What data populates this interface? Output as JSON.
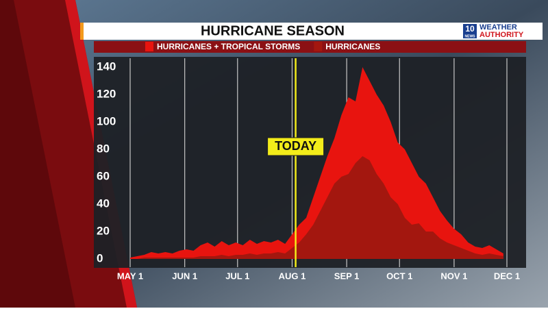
{
  "chart_data": {
    "type": "area",
    "title": "HURRICANE SEASON",
    "logo": {
      "number": "10",
      "network": "NEWS",
      "line1": "WEATHER",
      "line2": "AUTHORITY"
    },
    "x": [
      0,
      4,
      8,
      12,
      16,
      20,
      24,
      28,
      32,
      36,
      40,
      44,
      48,
      52,
      56,
      60,
      64,
      68,
      72,
      76,
      80,
      84,
      88,
      92,
      96,
      100,
      104,
      108,
      112,
      116,
      120,
      124,
      128,
      132,
      136,
      140,
      144,
      148,
      152,
      156,
      160,
      164,
      168,
      172,
      176,
      180,
      184,
      188,
      192,
      196,
      200,
      204,
      208,
      212
    ],
    "series": [
      {
        "name": "HURRICANES + TROPICAL STORMS",
        "color": "#e8140f",
        "values": [
          1,
          2,
          3,
          5,
          4,
          5,
          4,
          6,
          7,
          6,
          10,
          12,
          9,
          13,
          10,
          12,
          10,
          14,
          11,
          13,
          12,
          14,
          11,
          18,
          25,
          30,
          45,
          60,
          75,
          88,
          105,
          118,
          115,
          140,
          130,
          120,
          112,
          100,
          85,
          80,
          70,
          60,
          55,
          45,
          35,
          28,
          22,
          18,
          12,
          9,
          8,
          10,
          7,
          4
        ]
      },
      {
        "name": "HURRICANES",
        "color": "#a3170f",
        "values": [
          0,
          0,
          1,
          1,
          1,
          1,
          1,
          1,
          1,
          1,
          2,
          2,
          2,
          3,
          2,
          3,
          3,
          4,
          3,
          4,
          4,
          5,
          4,
          8,
          12,
          18,
          25,
          35,
          45,
          55,
          60,
          62,
          70,
          75,
          72,
          62,
          55,
          45,
          40,
          30,
          25,
          26,
          20,
          20,
          15,
          12,
          10,
          8,
          6,
          4,
          3,
          4,
          3,
          2
        ]
      }
    ],
    "xlim": [
      0,
      214
    ],
    "xticks": [
      {
        "value": 0,
        "label": "MAY 1"
      },
      {
        "value": 31,
        "label": "JUN 1"
      },
      {
        "value": 61,
        "label": "JUL 1"
      },
      {
        "value": 92,
        "label": "AUG 1"
      },
      {
        "value": 123,
        "label": "SEP 1"
      },
      {
        "value": 153,
        "label": "OCT 1"
      },
      {
        "value": 184,
        "label": "NOV 1"
      },
      {
        "value": 214,
        "label": "DEC 1"
      }
    ],
    "ylim": [
      0,
      140
    ],
    "yticks": [
      0,
      20,
      40,
      60,
      80,
      100,
      120,
      140
    ],
    "grid": "x",
    "annotation": {
      "text": "TODAY",
      "x": 94,
      "color": "#f3ec1a"
    }
  }
}
